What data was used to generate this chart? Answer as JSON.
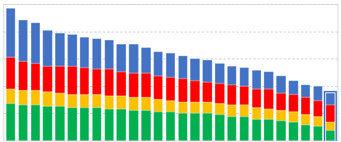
{
  "n_bars": 27,
  "colors": {
    "blue": "#4472C4",
    "red": "#FF0000",
    "yellow": "#FFC000",
    "green": "#00B050"
  },
  "background_color": "#FFFFFF",
  "grid_color": "#AAAAAA",
  "bar_edge_color": "#FFFFFF",
  "highlight_bar_index": 26,
  "highlight_color": "#4472C4",
  "green_values": [
    26,
    25,
    25,
    24,
    24,
    23,
    23,
    23,
    22,
    22,
    21,
    21,
    20,
    20,
    19,
    19,
    19,
    18,
    17,
    17,
    15,
    15,
    14,
    13,
    11,
    10,
    7
  ],
  "yellow_values": [
    10,
    10,
    10,
    10,
    9,
    9,
    9,
    9,
    9,
    9,
    9,
    9,
    9,
    8,
    8,
    8,
    8,
    8,
    8,
    8,
    8,
    7,
    7,
    7,
    7,
    7,
    6
  ],
  "red_values": [
    22,
    20,
    19,
    18,
    19,
    20,
    19,
    18,
    19,
    17,
    17,
    17,
    16,
    16,
    16,
    15,
    14,
    14,
    14,
    13,
    13,
    14,
    12,
    12,
    12,
    11,
    12
  ],
  "blue_values": [
    34,
    29,
    28,
    25,
    23,
    22,
    21,
    21,
    20,
    19,
    20,
    18,
    17,
    17,
    16,
    15,
    15,
    14,
    13,
    13,
    13,
    12,
    12,
    10,
    9,
    10,
    8
  ],
  "ylim": [
    0,
    95
  ],
  "ytick_positions": [
    0,
    19,
    38,
    57,
    76,
    95
  ],
  "bar_width": 0.75,
  "figsize": [
    4.95,
    2.06
  ],
  "dpi": 100
}
